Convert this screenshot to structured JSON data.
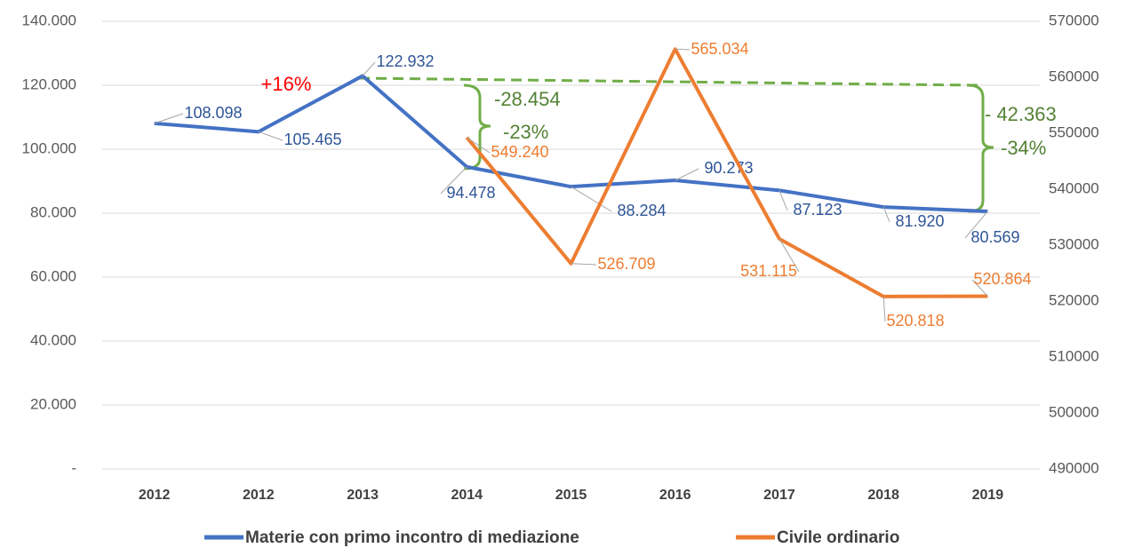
{
  "chart_data": {
    "type": "line",
    "categories": [
      "2012",
      "2012",
      "2013",
      "2014",
      "2015",
      "2016",
      "2017",
      "2018",
      "2019"
    ],
    "series": [
      {
        "name": "Materie con primo incontro di mediazione",
        "color": "#4472c4",
        "values": [
          108098,
          105465,
          122932,
          94478,
          88284,
          90273,
          87123,
          81920,
          80569
        ],
        "value_labels": [
          "108.098",
          "105.465",
          "122.932",
          "94.478",
          "88.284",
          "90.273",
          "87.123",
          "81.920",
          "80.569"
        ]
      },
      {
        "name": "Civile ordinario",
        "color": "#ed7d31",
        "axis": "y2",
        "values": [
          null,
          null,
          null,
          549240,
          526709,
          565034,
          531115,
          520818,
          520864
        ],
        "value_labels": [
          null,
          null,
          null,
          "549.240",
          "526.709",
          "565.034",
          "531.115",
          "520.818",
          "520.864"
        ]
      }
    ],
    "ylim": [
      0,
      140000
    ],
    "yticks": [
      {
        "value": 0,
        "label": "-"
      },
      {
        "value": 20000,
        "label": "20.000"
      },
      {
        "value": 40000,
        "label": "40.000"
      },
      {
        "value": 60000,
        "label": "60.000"
      },
      {
        "value": 80000,
        "label": "80.000"
      },
      {
        "value": 100000,
        "label": "100.000"
      },
      {
        "value": 120000,
        "label": "120.000"
      },
      {
        "value": 140000,
        "label": "140.000"
      }
    ],
    "y2lim": [
      490000,
      570000
    ],
    "y2ticks": [
      490000,
      500000,
      510000,
      520000,
      530000,
      540000,
      550000,
      560000,
      570000
    ],
    "grid": true,
    "legend": "bottom",
    "annotations": [
      {
        "text": "+16%",
        "color": "#ff0000"
      },
      {
        "text": "-28.454",
        "color": "#548235"
      },
      {
        "text": "-23%",
        "color": "#548235"
      },
      {
        "text": "- 42.363",
        "color": "#548235"
      },
      {
        "text": "-34%",
        "color": "#548235"
      }
    ]
  }
}
